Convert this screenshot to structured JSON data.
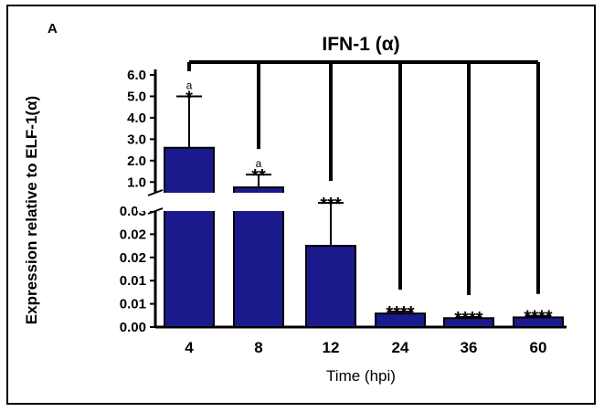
{
  "panel_label": "A",
  "chart_data": {
    "type": "bar",
    "title": "IFN-1 (α)",
    "xlabel": "Time (hpi)",
    "ylabel": "Expression relative to ELF-1(α)",
    "categories": [
      "4",
      "8",
      "12",
      "24",
      "36",
      "60"
    ],
    "series": [
      {
        "values": [
          2.6,
          0.75,
          0.021,
          0.0035,
          0.0023,
          0.0025
        ],
        "error": [
          2.4,
          0.6,
          0.0125,
          0.0005,
          0.0003,
          0.0004
        ]
      }
    ],
    "annotations": [
      {
        "category": "4",
        "stars": "*",
        "letter": "a"
      },
      {
        "category": "8",
        "stars": "**",
        "letter": "a"
      },
      {
        "category": "12",
        "stars": "***",
        "letter": ""
      },
      {
        "category": "24",
        "stars": "****",
        "letter": ""
      },
      {
        "category": "36",
        "stars": "****",
        "letter": ""
      },
      {
        "category": "60",
        "stars": "****",
        "letter": ""
      }
    ],
    "y_axis_broken": true,
    "upper_segment": {
      "ylim": [
        0.5,
        6.0
      ],
      "ticks": [
        "1.0",
        "2.0",
        "3.0",
        "4.0",
        "5.0",
        "6.0"
      ]
    },
    "lower_segment": {
      "ylim": [
        0,
        0.03
      ],
      "ticks": [
        "0.00",
        "0.01",
        "0.01",
        "0.02",
        "0.02",
        "0.03"
      ]
    },
    "bar_color": "#1a1a8c",
    "grid": false,
    "legend": "none"
  }
}
